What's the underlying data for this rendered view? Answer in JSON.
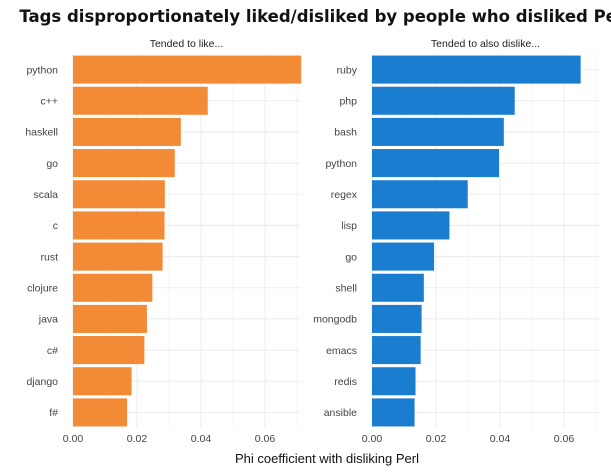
{
  "chart_data": {
    "type": "bar",
    "orientation": "horizontal",
    "title": "Tags disproportionately liked/disliked by people who disliked Perl",
    "xlabel": "Phi coefficient with disliking Perl",
    "xlim": [
      0,
      0.07
    ],
    "x_ticks": [
      "0.00",
      "0.02",
      "0.04",
      "0.06"
    ],
    "panels": [
      {
        "label": "Tended to like...",
        "color": "#f28a36",
        "categories": [
          "python",
          "c++",
          "haskell",
          "go",
          "scala",
          "c",
          "rust",
          "clojure",
          "java",
          "c#",
          "django",
          "f#"
        ],
        "values": [
          0.0713,
          0.0421,
          0.0337,
          0.0318,
          0.0287,
          0.0286,
          0.028,
          0.0248,
          0.0231,
          0.0223,
          0.0183,
          0.0169
        ]
      },
      {
        "label": "Tended to also dislike...",
        "color": "#1b7dcf",
        "categories": [
          "ruby",
          "php",
          "bash",
          "python",
          "regex",
          "lisp",
          "go",
          "shell",
          "mongodb",
          "emacs",
          "redis",
          "ansible"
        ],
        "values": [
          0.0652,
          0.0446,
          0.0412,
          0.0397,
          0.0299,
          0.0242,
          0.0194,
          0.0162,
          0.0155,
          0.0152,
          0.0136,
          0.0133
        ]
      }
    ]
  }
}
